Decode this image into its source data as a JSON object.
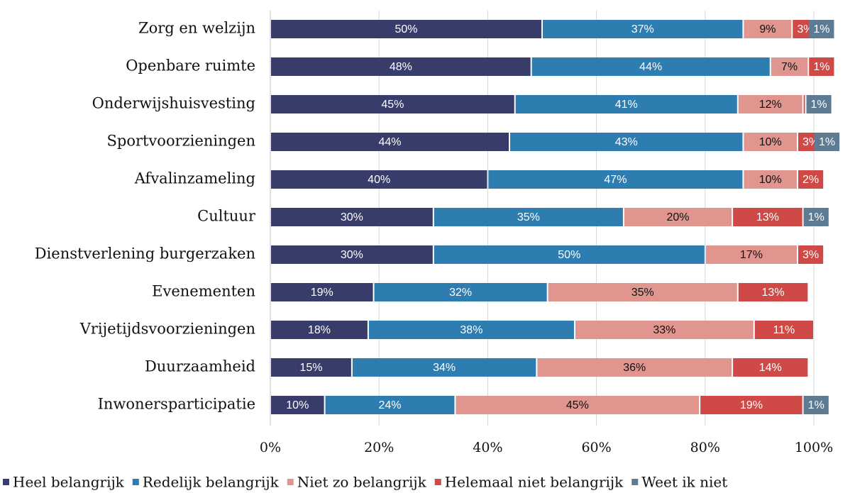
{
  "chart_data": {
    "type": "bar",
    "orientation": "horizontal",
    "stacked": true,
    "grid": true,
    "legend": "bottom",
    "categories": [
      "Zorg en welzijn",
      "Openbare ruimte",
      "Onderwijshuisvesting",
      "Sportvoorzieningen",
      "Afvalinzameling",
      "Cultuur",
      "Dienstverlening burgerzaken",
      "Evenementen",
      "Vrijetijdsvoorzieningen",
      "Duurzaamheid",
      "Inwonersparticipatie"
    ],
    "xlim": [
      0,
      100
    ],
    "xticks": [
      {
        "value": 0,
        "label": "0%"
      },
      {
        "value": 20,
        "label": "20%"
      },
      {
        "value": 40,
        "label": "40%"
      },
      {
        "value": 60,
        "label": "60%"
      },
      {
        "value": 80,
        "label": "80%"
      },
      {
        "value": 100,
        "label": "100%"
      }
    ],
    "series": [
      {
        "name": "Heel belangrijk",
        "color": "#383c6b",
        "label_color": "#ffffff",
        "values": [
          50,
          48,
          45,
          44,
          40,
          30,
          30,
          19,
          18,
          15,
          10
        ],
        "value_labels": [
          "50%",
          "48%",
          "45%",
          "44%",
          "40%",
          "30%",
          "30%",
          "19%",
          "18%",
          "15%",
          "10%"
        ]
      },
      {
        "name": "Redelijk belangrijk",
        "color": "#2e7db1",
        "label_color": "#ffffff",
        "values": [
          37,
          44,
          41,
          43,
          47,
          35,
          50,
          32,
          38,
          34,
          24
        ],
        "value_labels": [
          "37%",
          "44%",
          "41%",
          "43%",
          "47%",
          "35%",
          "50%",
          "32%",
          "38%",
          "34%",
          "24%"
        ]
      },
      {
        "name": "Niet zo belangrijk",
        "color": "#e0958f",
        "label_color": "#111111",
        "values": [
          9,
          7,
          12,
          10,
          10,
          20,
          17,
          35,
          33,
          36,
          45
        ],
        "value_labels": [
          "9%",
          "7%",
          "12%",
          "10%",
          "10%",
          "20%",
          "17%",
          "35%",
          "33%",
          "36%",
          "45%"
        ]
      },
      {
        "name": "Helemaal niet belangrijk",
        "color": "#cf4a47",
        "label_color": "#ffffff",
        "values": [
          3,
          1,
          0.5,
          3,
          2,
          13,
          3,
          13,
          11,
          14,
          19
        ],
        "value_labels": [
          "3%",
          "1%",
          null,
          "3%",
          "2%",
          "13%",
          "3%",
          "13%",
          "11%",
          "14%",
          "19%"
        ]
      },
      {
        "name": "Weet ik niet",
        "color": "#5e7b94",
        "label_color": "#ffffff",
        "values": [
          1,
          null,
          1,
          1,
          null,
          1,
          null,
          null,
          null,
          null,
          1
        ],
        "value_labels": [
          "1%",
          null,
          "1%",
          "1%",
          null,
          "1%",
          null,
          null,
          null,
          null,
          "1%"
        ]
      }
    ]
  }
}
